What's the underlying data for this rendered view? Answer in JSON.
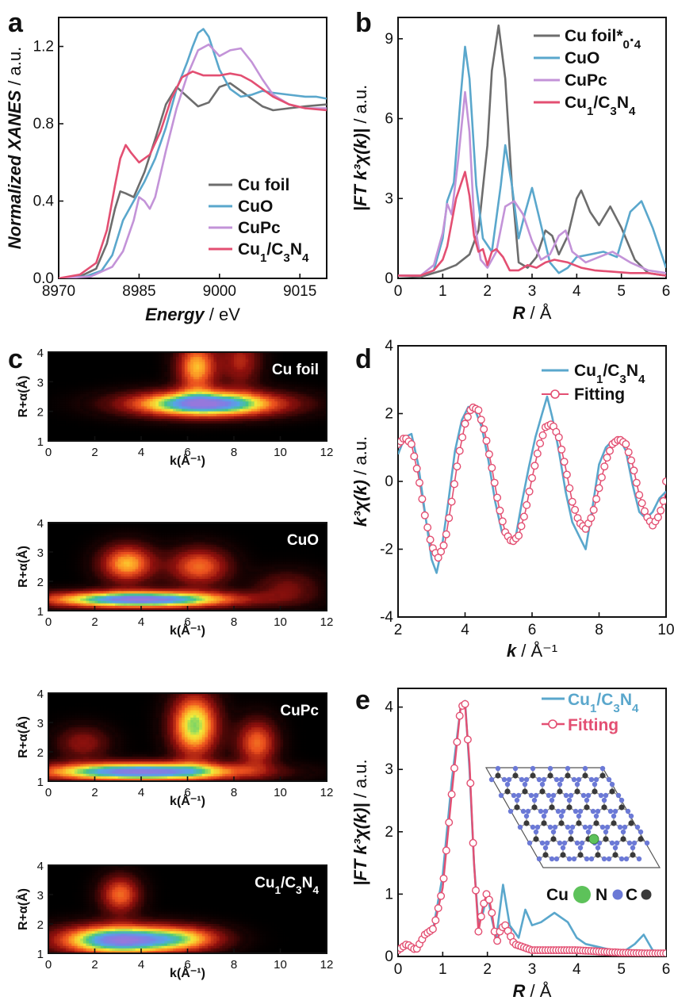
{
  "chart_data": [
    {
      "panel": "a",
      "type": "line",
      "xlabel_main": "Energy",
      "xlabel_unit": " / eV",
      "ylabel_main": "Normalized XANES",
      "ylabel_unit": " / a.u.",
      "xlim": [
        8970,
        9020
      ],
      "ylim": [
        0,
        1.35
      ],
      "xticks": [
        8970,
        8985,
        9000,
        9015
      ],
      "yticks": [
        0.0,
        0.4,
        0.8,
        1.2
      ],
      "legend_position": "bottom-right",
      "series": [
        {
          "name": "Cu foil",
          "color": "#6d6d6d",
          "x": [
            8970,
            8974,
            8977,
            8979,
            8980.5,
            8981.5,
            8982.5,
            8984,
            8986,
            8988,
            8990,
            8992,
            8994,
            8996,
            8998,
            9000,
            9002,
            9004,
            9006,
            9008,
            9010,
            9013,
            9016,
            9020
          ],
          "y": [
            0.0,
            0.01,
            0.05,
            0.18,
            0.36,
            0.45,
            0.44,
            0.42,
            0.55,
            0.72,
            0.9,
            0.99,
            0.94,
            0.89,
            0.91,
            0.99,
            1.01,
            0.97,
            0.93,
            0.89,
            0.87,
            0.88,
            0.89,
            0.9
          ]
        },
        {
          "name": "CuO",
          "color": "#5aa7cc",
          "x": [
            8970,
            8975,
            8978,
            8980,
            8982,
            8984,
            8986,
            8988,
            8990,
            8992,
            8994,
            8995,
            8996,
            8997,
            8998,
            9000,
            9002,
            9004,
            9006,
            9008,
            9010,
            9013,
            9016,
            9018,
            9020
          ],
          "y": [
            0.0,
            0.01,
            0.04,
            0.12,
            0.3,
            0.4,
            0.5,
            0.62,
            0.78,
            0.98,
            1.12,
            1.2,
            1.27,
            1.29,
            1.25,
            1.08,
            0.98,
            0.94,
            0.95,
            0.97,
            0.96,
            0.95,
            0.94,
            0.94,
            0.93
          ]
        },
        {
          "name": "CuPc",
          "color": "#c393d8",
          "x": [
            8970,
            8976,
            8980,
            8982,
            8984,
            8985,
            8986,
            8987,
            8988,
            8990,
            8992,
            8994,
            8996,
            8998,
            9000,
            9002,
            9004,
            9006,
            9008,
            9010,
            9013,
            9016,
            9020
          ],
          "y": [
            0.0,
            0.01,
            0.06,
            0.14,
            0.3,
            0.42,
            0.4,
            0.36,
            0.42,
            0.66,
            0.88,
            1.05,
            1.18,
            1.21,
            1.15,
            1.18,
            1.19,
            1.12,
            1.03,
            0.95,
            0.9,
            0.88,
            0.88
          ]
        },
        {
          "name": "Cu1/C3N4",
          "color": "#e34f72",
          "x": [
            8970,
            8974,
            8977,
            8979,
            8980.5,
            8981.5,
            8982.5,
            8983.5,
            8985,
            8987,
            8989,
            8991,
            8993,
            8995,
            8997,
            9000,
            9002,
            9004,
            9006,
            9008,
            9010,
            9013,
            9016,
            9020
          ],
          "y": [
            0.0,
            0.02,
            0.08,
            0.25,
            0.48,
            0.62,
            0.69,
            0.65,
            0.6,
            0.64,
            0.76,
            0.93,
            1.04,
            1.07,
            1.05,
            1.05,
            1.06,
            1.05,
            1.02,
            0.98,
            0.94,
            0.9,
            0.88,
            0.87
          ]
        }
      ]
    },
    {
      "panel": "b",
      "type": "line",
      "xlabel_main": "R",
      "xlabel_unit": " / Å",
      "ylabel_main": "|FT k³χ(k)|",
      "ylabel_unit": " / a.u.",
      "xlim": [
        0,
        6
      ],
      "ylim": [
        0,
        9.8
      ],
      "xticks": [
        0,
        1,
        2,
        3,
        4,
        5,
        6
      ],
      "yticks": [
        0,
        3,
        6,
        9
      ],
      "legend_position": "top-right",
      "series": [
        {
          "name": "Cu foil*0.4",
          "color": "#6d6d6d",
          "x": [
            0,
            0.5,
            1.0,
            1.3,
            1.6,
            1.8,
            2.0,
            2.1,
            2.25,
            2.4,
            2.55,
            2.7,
            2.9,
            3.1,
            3.3,
            3.45,
            3.6,
            3.8,
            4.0,
            4.1,
            4.3,
            4.5,
            4.75,
            5.0,
            5.3,
            5.6,
            6.0
          ],
          "y": [
            0.1,
            0.05,
            0.3,
            0.5,
            0.9,
            1.8,
            5.0,
            7.8,
            9.5,
            7.5,
            3.5,
            0.6,
            0.4,
            0.8,
            1.8,
            1.6,
            0.9,
            1.6,
            3.0,
            3.3,
            2.5,
            2.0,
            2.7,
            1.9,
            0.7,
            0.2,
            0.1
          ]
        },
        {
          "name": "CuO",
          "color": "#5aa7cc",
          "x": [
            0,
            0.5,
            0.8,
            1.0,
            1.1,
            1.25,
            1.4,
            1.5,
            1.6,
            1.75,
            1.9,
            2.1,
            2.3,
            2.4,
            2.55,
            2.7,
            2.85,
            3.0,
            3.2,
            3.4,
            3.6,
            3.8,
            4.0,
            4.3,
            4.6,
            4.9,
            5.2,
            5.45,
            5.7,
            6.0
          ],
          "y": [
            0.1,
            0.1,
            0.3,
            1.5,
            2.9,
            3.6,
            6.8,
            8.7,
            7.5,
            3.5,
            1.5,
            1.0,
            3.5,
            5.0,
            3.5,
            1.5,
            2.5,
            3.4,
            2.0,
            0.6,
            0.2,
            0.4,
            0.8,
            0.9,
            1.0,
            0.8,
            2.5,
            2.9,
            1.9,
            0.4
          ]
        },
        {
          "name": "CuPc",
          "color": "#c393d8",
          "x": [
            0,
            0.5,
            0.8,
            1.0,
            1.1,
            1.2,
            1.35,
            1.5,
            1.6,
            1.7,
            1.85,
            2.0,
            2.2,
            2.4,
            2.6,
            2.8,
            3.0,
            3.2,
            3.4,
            3.6,
            3.75,
            3.9,
            4.2,
            4.5,
            4.8,
            5.2,
            5.6,
            6.0
          ],
          "y": [
            0.1,
            0.1,
            0.5,
            1.7,
            2.8,
            2.4,
            4.5,
            7.0,
            5.5,
            2.2,
            0.7,
            0.4,
            1.0,
            2.7,
            2.9,
            2.4,
            1.4,
            0.7,
            0.9,
            1.6,
            1.8,
            1.0,
            0.6,
            0.8,
            1.0,
            0.6,
            0.3,
            0.2
          ]
        },
        {
          "name": "Cu1/C3N4",
          "color": "#e34f72",
          "x": [
            0,
            0.5,
            0.8,
            1.0,
            1.1,
            1.3,
            1.5,
            1.6,
            1.7,
            1.8,
            1.9,
            2.0,
            2.1,
            2.2,
            2.35,
            2.5,
            2.7,
            2.9,
            3.1,
            3.3,
            3.5,
            3.8,
            4.1,
            4.4,
            4.8,
            5.2,
            5.6,
            6.0
          ],
          "y": [
            0.1,
            0.1,
            0.3,
            0.7,
            1.2,
            3.0,
            4.0,
            3.1,
            1.6,
            1.0,
            1.1,
            0.5,
            1.0,
            1.1,
            0.8,
            0.3,
            0.3,
            0.5,
            0.4,
            0.6,
            0.7,
            0.6,
            0.4,
            0.3,
            0.25,
            0.2,
            0.2,
            0.1
          ]
        }
      ]
    },
    {
      "panel": "c",
      "type": "heatmap",
      "xlabel": "k(Å⁻¹)",
      "ylabel": "R+α(Å)",
      "xlim": [
        0,
        12
      ],
      "ylim": [
        1,
        4
      ],
      "xticks": [
        0,
        2,
        4,
        6,
        8,
        10,
        12
      ],
      "yticks": [
        1,
        2,
        3,
        4
      ],
      "maps": [
        {
          "name": "Cu foil",
          "peaks": [
            {
              "k": 6.8,
              "r": 2.25,
              "amp": 1.0,
              "sk": 2.2,
              "sr": 0.3
            },
            {
              "k": 6.4,
              "r": 3.5,
              "amp": 0.55,
              "sk": 0.6,
              "sr": 0.6
            },
            {
              "k": 8.3,
              "r": 3.7,
              "amp": 0.3,
              "sk": 0.6,
              "sr": 0.6
            }
          ]
        },
        {
          "name": "CuO",
          "peaks": [
            {
              "k": 4.0,
              "r": 1.38,
              "amp": 1.0,
              "sk": 2.8,
              "sr": 0.2
            },
            {
              "k": 3.4,
              "r": 2.6,
              "amp": 0.55,
              "sk": 0.8,
              "sr": 0.45
            },
            {
              "k": 6.5,
              "r": 2.5,
              "amp": 0.45,
              "sk": 0.9,
              "sr": 0.45
            },
            {
              "k": 10.3,
              "r": 1.8,
              "amp": 0.2,
              "sk": 1.0,
              "sr": 0.4
            }
          ]
        },
        {
          "name": "CuPc",
          "peaks": [
            {
              "k": 4.0,
              "r": 1.32,
              "amp": 1.0,
              "sk": 3.0,
              "sr": 0.22
            },
            {
              "k": 6.3,
              "r": 2.9,
              "amp": 0.7,
              "sk": 0.7,
              "sr": 0.75
            },
            {
              "k": 9.0,
              "r": 2.3,
              "amp": 0.45,
              "sk": 0.6,
              "sr": 0.55
            },
            {
              "k": 1.5,
              "r": 2.3,
              "amp": 0.25,
              "sk": 0.8,
              "sr": 0.4
            }
          ]
        },
        {
          "name": "Cu1/C3N4",
          "peaks": [
            {
              "k": 3.1,
              "r": 1.45,
              "amp": 1.0,
              "sk": 1.8,
              "sr": 0.35
            },
            {
              "k": 3.1,
              "r": 3.0,
              "amp": 0.45,
              "sk": 0.6,
              "sr": 0.45
            },
            {
              "k": 6.0,
              "r": 1.5,
              "amp": 0.4,
              "sk": 1.2,
              "sr": 0.3
            }
          ]
        }
      ]
    },
    {
      "panel": "d",
      "type": "line",
      "xlabel_main": "k",
      "xlabel_unit": " / Å⁻¹",
      "ylabel_main": "k³χ(k)",
      "ylabel_unit": " / a.u.",
      "xlim": [
        2,
        10
      ],
      "ylim": [
        -4,
        4
      ],
      "xticks": [
        2,
        4,
        6,
        8,
        10
      ],
      "yticks": [
        -4,
        -2,
        0,
        2,
        4
      ],
      "legend_position": "top-right",
      "series": [
        {
          "name": "Cu1/C3N4",
          "color": "#5aa7cc",
          "x": [
            2.0,
            2.2,
            2.4,
            2.6,
            2.8,
            3.0,
            3.15,
            3.3,
            3.5,
            3.7,
            3.9,
            4.1,
            4.3,
            4.5,
            4.7,
            4.9,
            5.1,
            5.3,
            5.5,
            5.7,
            5.9,
            6.1,
            6.3,
            6.45,
            6.6,
            6.8,
            7.0,
            7.2,
            7.4,
            7.6,
            7.8,
            8.0,
            8.2,
            8.4,
            8.6,
            8.8,
            9.0,
            9.2,
            9.4,
            9.6,
            9.8,
            10.0
          ],
          "y": [
            0.8,
            1.3,
            1.4,
            0.5,
            -0.9,
            -2.3,
            -2.7,
            -2.0,
            -0.6,
            0.9,
            1.8,
            2.2,
            2.1,
            1.6,
            0.6,
            -0.6,
            -1.5,
            -1.7,
            -1.7,
            -0.6,
            0.4,
            1.3,
            2.0,
            2.5,
            1.9,
            0.9,
            -0.3,
            -1.2,
            -1.6,
            -2.0,
            -0.8,
            0.5,
            1.0,
            1.2,
            1.3,
            0.9,
            -0.1,
            -0.9,
            -1.1,
            -0.9,
            -0.5,
            -0.3
          ]
        },
        {
          "name": "Fitting",
          "color": "#e34f72",
          "x": [
            2.0,
            2.2,
            2.4,
            2.6,
            2.8,
            3.0,
            3.2,
            3.4,
            3.6,
            3.8,
            4.0,
            4.2,
            4.4,
            4.6,
            4.8,
            5.0,
            5.2,
            5.4,
            5.6,
            5.8,
            6.0,
            6.2,
            6.4,
            6.6,
            6.8,
            7.0,
            7.2,
            7.4,
            7.6,
            7.8,
            8.0,
            8.2,
            8.4,
            8.6,
            8.8,
            9.0,
            9.2,
            9.4,
            9.6,
            9.8,
            10.0
          ],
          "y": [
            1.1,
            1.3,
            1.1,
            0.2,
            -1.0,
            -1.9,
            -2.25,
            -1.8,
            -0.6,
            0.7,
            1.7,
            2.2,
            2.1,
            1.4,
            0.4,
            -0.7,
            -1.5,
            -1.8,
            -1.6,
            -0.9,
            0.1,
            1.0,
            1.6,
            1.7,
            1.3,
            0.4,
            -0.6,
            -1.2,
            -1.4,
            -1.0,
            -0.2,
            0.6,
            1.1,
            1.25,
            1.1,
            0.5,
            -0.4,
            -1.0,
            -1.3,
            -1.0,
            -0.3
          ]
        }
      ]
    },
    {
      "panel": "e",
      "type": "line",
      "xlabel_main": "R",
      "xlabel_unit": " / Å",
      "ylabel_main": "|FT k³χ(k)|",
      "ylabel_unit": " / a.u.",
      "xlim": [
        0,
        6
      ],
      "ylim": [
        0,
        4.3
      ],
      "xticks": [
        0,
        1,
        2,
        3,
        4,
        5,
        6
      ],
      "yticks": [
        0,
        1,
        2,
        3,
        4
      ],
      "legend_position": "top-right",
      "series": [
        {
          "name": "Cu1/C3N4",
          "color": "#5aa7cc",
          "x": [
            0,
            0.2,
            0.4,
            0.6,
            0.8,
            1.0,
            1.2,
            1.4,
            1.5,
            1.6,
            1.7,
            1.8,
            1.9,
            2.0,
            2.1,
            2.2,
            2.35,
            2.5,
            2.7,
            2.85,
            3.0,
            3.2,
            3.5,
            3.8,
            4.0,
            4.2,
            4.5,
            4.8,
            5.1,
            5.3,
            5.5,
            5.7,
            6.0
          ],
          "y": [
            0.1,
            0.2,
            0.15,
            0.3,
            0.5,
            1.3,
            2.8,
            4.0,
            4.1,
            3.0,
            1.5,
            0.5,
            0.7,
            1.0,
            0.6,
            0.3,
            1.15,
            0.5,
            0.3,
            0.75,
            0.5,
            0.55,
            0.7,
            0.55,
            0.3,
            0.2,
            0.15,
            0.1,
            0.1,
            0.2,
            0.35,
            0.1,
            0.05
          ]
        },
        {
          "name": "Fitting",
          "color": "#e34f72",
          "x": [
            0,
            0.2,
            0.4,
            0.6,
            0.8,
            1.0,
            1.2,
            1.4,
            1.5,
            1.6,
            1.7,
            1.8,
            1.9,
            2.0,
            2.1,
            2.2,
            2.3,
            2.4,
            2.6,
            2.8,
            3.0,
            3.5,
            4.0,
            4.5,
            5.0,
            5.5,
            6.0
          ],
          "y": [
            0.1,
            0.2,
            0.1,
            0.35,
            0.45,
            1.1,
            2.6,
            4.0,
            4.05,
            3.1,
            1.5,
            0.4,
            0.8,
            1.05,
            0.7,
            0.2,
            0.45,
            0.5,
            0.2,
            0.15,
            0.1,
            0.1,
            0.1,
            0.08,
            0.06,
            0.05,
            0.05
          ]
        }
      ],
      "inset_legend": [
        "Cu",
        "N",
        "C"
      ]
    }
  ],
  "palette": {
    "cu_foil": "#6d6d6d",
    "cuo": "#5aa7cc",
    "cupc": "#c393d8",
    "cu1c3n4": "#e34f72",
    "atom_cu": "#5dc25a",
    "atom_n": "#6b79d6",
    "atom_c": "#3a3a3a"
  }
}
